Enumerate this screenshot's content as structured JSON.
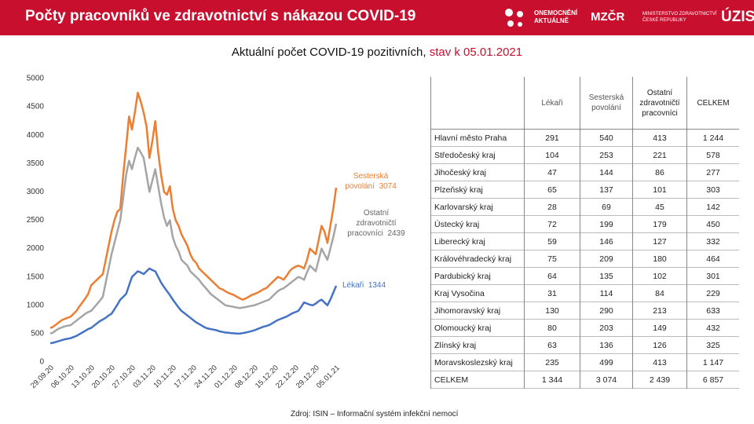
{
  "header": {
    "title": "Počty pracovníků ve zdravotnictví s nákazou COVID-19",
    "logos": [
      "ONEMOCNĚNÍ",
      "AKTUÁLNĚ",
      "MZČR",
      "MINISTERSTVO ZDRAVOTNICTVÍ",
      "ČESKÉ REPUBLIKY",
      "ÚZIS"
    ]
  },
  "chart_data": {
    "type": "line",
    "subtitle": "Aktuální počet COVID-19 pozitivních, ",
    "subtitle_highlight": "stav k 05.01.2021",
    "categories": [
      "29.09.20",
      null,
      null,
      null,
      null,
      null,
      null,
      "06.10.20",
      null,
      null,
      null,
      null,
      null,
      null,
      "13.10.20",
      null,
      null,
      null,
      null,
      null,
      null,
      "20.10.20",
      null,
      null,
      null,
      null,
      null,
      null,
      "27.10.20",
      null,
      null,
      null,
      null,
      null,
      null,
      "03.11.20",
      null,
      null,
      null,
      null,
      null,
      null,
      "10.11.20",
      null,
      null,
      null,
      null,
      null,
      null,
      "17.11.20",
      null,
      null,
      null,
      null,
      null,
      null,
      "24.11.20",
      null,
      null,
      null,
      null,
      null,
      null,
      "01.12.20",
      null,
      null,
      null,
      null,
      null,
      null,
      "08.12.20",
      null,
      null,
      null,
      null,
      null,
      null,
      "15.12.20",
      null,
      null,
      null,
      null,
      null,
      null,
      "22.12.20",
      null,
      null,
      null,
      null,
      null,
      null,
      "29.12.20",
      null,
      null,
      null,
      null,
      null,
      null,
      "05.01.21"
    ],
    "series": [
      {
        "name": "Sesterská povolání",
        "color": "#ed7d31",
        "values": [
          600,
          620,
          660,
          700,
          740,
          760,
          780,
          800,
          850,
          900,
          980,
          1050,
          1120,
          1200,
          1350,
          1400,
          1450,
          1500,
          1550,
          1800,
          2050,
          2300,
          2500,
          2650,
          2700,
          3300,
          3800,
          4330,
          4100,
          4400,
          4750,
          4600,
          4400,
          4150,
          3600,
          3900,
          4250,
          3700,
          3300,
          3000,
          2950,
          3100,
          2700,
          2500,
          2400,
          2250,
          2150,
          2050,
          1900,
          1800,
          1750,
          1650,
          1600,
          1550,
          1500,
          1450,
          1400,
          1350,
          1300,
          1280,
          1250,
          1220,
          1200,
          1180,
          1150,
          1120,
          1100,
          1120,
          1150,
          1180,
          1200,
          1220,
          1250,
          1280,
          1300,
          1350,
          1400,
          1450,
          1500,
          1480,
          1450,
          1520,
          1600,
          1650,
          1680,
          1700,
          1680,
          1650,
          1800,
          2000,
          1950,
          1900,
          2150,
          2400,
          2300,
          2100,
          2400,
          2700,
          3074
        ]
      },
      {
        "name": "Ostatní zdravotničtí pracovníci",
        "color": "#a5a5a5",
        "values": [
          500,
          520,
          560,
          590,
          610,
          630,
          640,
          650,
          690,
          730,
          770,
          810,
          850,
          880,
          900,
          960,
          1020,
          1080,
          1150,
          1400,
          1650,
          1900,
          2100,
          2300,
          2500,
          2900,
          3300,
          3550,
          3400,
          3600,
          3780,
          3700,
          3600,
          3300,
          3000,
          3200,
          3400,
          3100,
          2800,
          2550,
          2400,
          2500,
          2200,
          2050,
          1950,
          1800,
          1750,
          1700,
          1600,
          1550,
          1500,
          1450,
          1380,
          1320,
          1260,
          1200,
          1160,
          1120,
          1080,
          1040,
          1000,
          990,
          980,
          970,
          960,
          950,
          960,
          970,
          980,
          990,
          1000,
          1020,
          1040,
          1060,
          1080,
          1100,
          1150,
          1200,
          1250,
          1280,
          1300,
          1340,
          1380,
          1420,
          1460,
          1500,
          1480,
          1450,
          1580,
          1700,
          1650,
          1600,
          1800,
          2000,
          1900,
          1800,
          2000,
          2200,
          2439
        ]
      },
      {
        "name": "Lékaři",
        "color": "#4472c4",
        "values": [
          330,
          340,
          355,
          370,
          385,
          400,
          410,
          420,
          440,
          460,
          490,
          520,
          550,
          580,
          600,
          640,
          680,
          720,
          750,
          780,
          820,
          850,
          930,
          1010,
          1100,
          1150,
          1200,
          1350,
          1500,
          1550,
          1600,
          1580,
          1550,
          1600,
          1650,
          1620,
          1600,
          1500,
          1400,
          1320,
          1250,
          1180,
          1100,
          1030,
          960,
          900,
          860,
          820,
          780,
          740,
          700,
          670,
          640,
          610,
          590,
          580,
          570,
          560,
          540,
          530,
          520,
          515,
          510,
          505,
          500,
          500,
          510,
          520,
          530,
          545,
          560,
          580,
          600,
          620,
          635,
          650,
          680,
          710,
          740,
          760,
          780,
          800,
          830,
          860,
          880,
          900,
          970,
          1050,
          1030,
          1010,
          1000,
          1030,
          1070,
          1100,
          1050,
          1000,
          1100,
          1220,
          1344
        ]
      }
    ],
    "ylim": [
      0,
      5000
    ],
    "yticks": [
      0,
      500,
      1000,
      1500,
      2000,
      2500,
      3000,
      3500,
      4000,
      4500,
      5000
    ]
  },
  "table": {
    "columns": [
      "Lékaři",
      "Sesterská povolání",
      "Ostatní zdravotničtí pracovníci",
      "CELKEM"
    ],
    "rows": [
      [
        "Hlavní město Praha",
        "291",
        "540",
        "413",
        "1 244"
      ],
      [
        "Středočeský kraj",
        "104",
        "253",
        "221",
        "578"
      ],
      [
        "Jihočeský kraj",
        "47",
        "144",
        "86",
        "277"
      ],
      [
        "Plzeňský kraj",
        "65",
        "137",
        "101",
        "303"
      ],
      [
        "Karlovarský kraj",
        "28",
        "69",
        "45",
        "142"
      ],
      [
        "Ústecký kraj",
        "72",
        "199",
        "179",
        "450"
      ],
      [
        "Liberecký kraj",
        "59",
        "146",
        "127",
        "332"
      ],
      [
        "Královéhradecký kraj",
        "75",
        "209",
        "180",
        "464"
      ],
      [
        "Pardubický kraj",
        "64",
        "135",
        "102",
        "301"
      ],
      [
        "Kraj Vysočina",
        "31",
        "114",
        "84",
        "229"
      ],
      [
        "Jihomoravský kraj",
        "130",
        "290",
        "213",
        "633"
      ],
      [
        "Olomoucký kraj",
        "80",
        "203",
        "149",
        "432"
      ],
      [
        "Zlínský kraj",
        "63",
        "136",
        "126",
        "325"
      ],
      [
        "Moravskoslezský kraj",
        "235",
        "499",
        "413",
        "1 147"
      ],
      [
        "CELKEM",
        "1 344",
        "3 074",
        "2 439",
        "6 857"
      ]
    ]
  },
  "source": "Zdroj: ISIN – Informační systém infekční nemocí"
}
